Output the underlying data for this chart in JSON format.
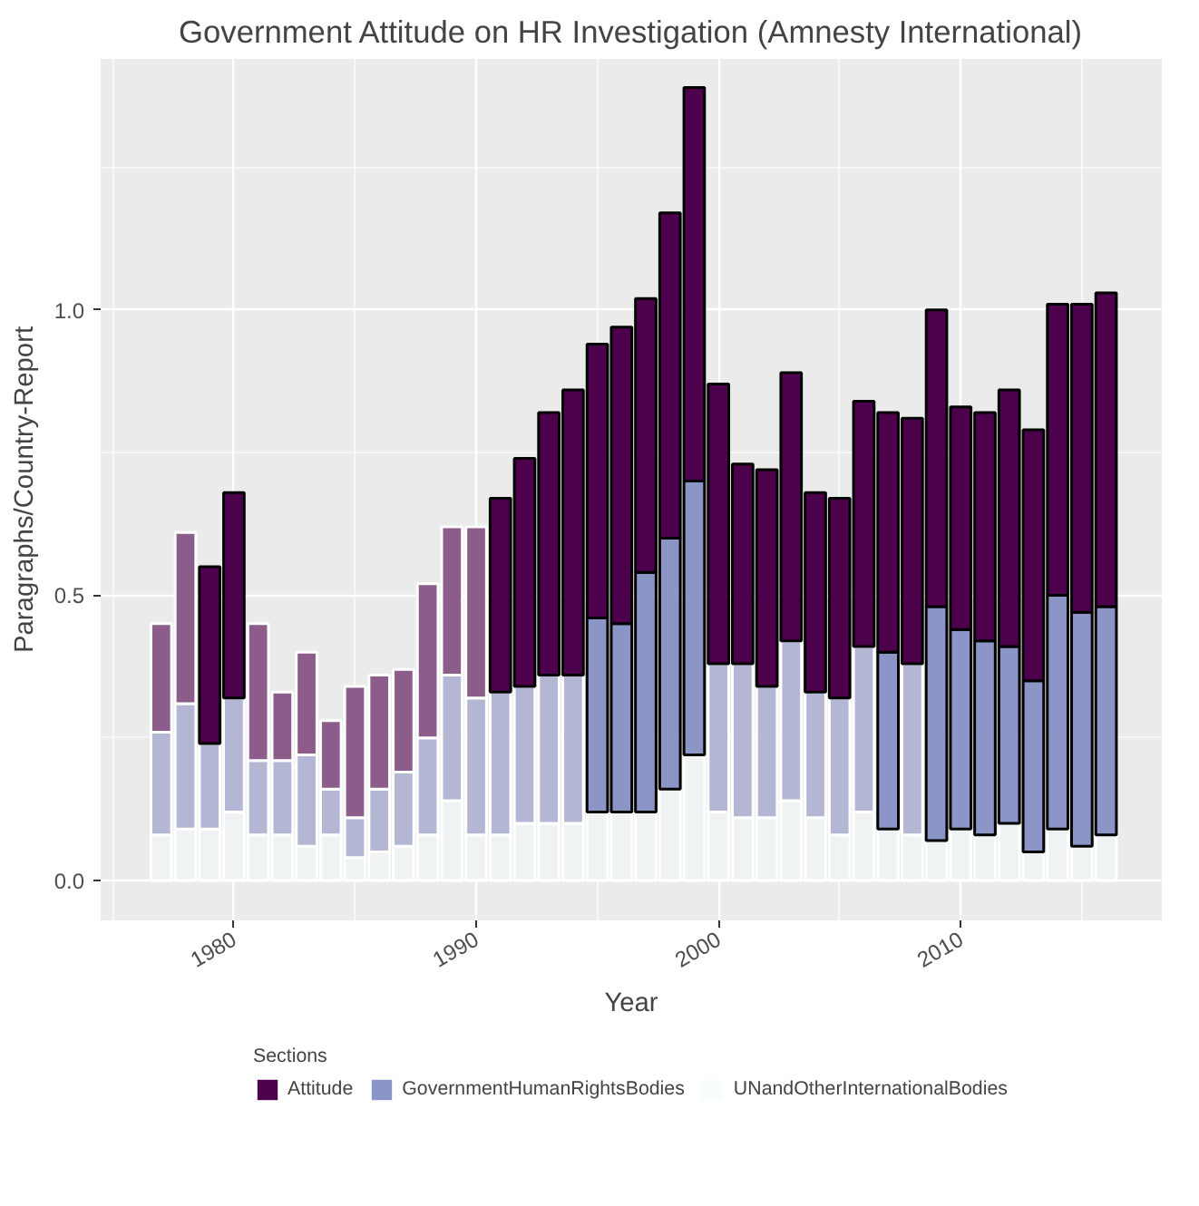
{
  "chart_data": {
    "type": "bar",
    "stacked": true,
    "title": "Government Attitude on HR Investigation (Amnesty International)",
    "xlabel": "Year",
    "ylabel": "Paragraphs/Country-Report",
    "legend_title": "Sections",
    "legend": "bottom",
    "grid": true,
    "x": [
      1977,
      1978,
      1979,
      1980,
      1981,
      1982,
      1983,
      1984,
      1985,
      1986,
      1987,
      1988,
      1989,
      1990,
      1991,
      1992,
      1993,
      1994,
      1995,
      1996,
      1997,
      1998,
      1999,
      2000,
      2001,
      2002,
      2003,
      2004,
      2005,
      2006,
      2007,
      2008,
      2009,
      2010,
      2011,
      2012,
      2013,
      2014,
      2015,
      2016
    ],
    "xlim": [
      1974.5,
      2018.3
    ],
    "xticks": [
      1980,
      1990,
      2000,
      2010
    ],
    "ylim": [
      -0.07,
      1.44
    ],
    "yticks": [
      {
        "value": 0,
        "label": "0.0"
      },
      {
        "value": 0.5,
        "label": "0.5"
      },
      {
        "value": 1,
        "label": "1.0"
      }
    ],
    "series": [
      {
        "name": "UNandOtherInternationalBodies",
        "color": "#f7fcfd",
        "colors": [
          "#eff3f3",
          "#eff3f3",
          "#eff3f3",
          "#eff3f3",
          "#eff3f3",
          "#eff3f3",
          "#eff3f3",
          "#eff3f3",
          "#eff3f3",
          "#eff3f3",
          "#eff3f3",
          "#eff3f3",
          "#eff3f3",
          "#eff3f3",
          "#eff3f3",
          "#eff3f3",
          "#eff3f3",
          "#eff3f3",
          "#eff3f3",
          "#eff3f3",
          "#eff3f3",
          "#eff3f3",
          "#eff3f3",
          "#eff3f3",
          "#eff3f3",
          "#eff3f3",
          "#eff3f3",
          "#eff3f3",
          "#eff3f3",
          "#eff3f3",
          "#eff3f3",
          "#eff3f3",
          "#eff3f3",
          "#eff3f3",
          "#eff3f3",
          "#eff3f3",
          "#eff3f3",
          "#eff3f3",
          "#eff3f3",
          "#eff3f3"
        ],
        "values": [
          0.08,
          0.09,
          0.09,
          0.12,
          0.08,
          0.08,
          0.06,
          0.08,
          0.04,
          0.05,
          0.06,
          0.08,
          0.14,
          0.08,
          0.08,
          0.1,
          0.1,
          0.1,
          0.12,
          0.12,
          0.12,
          0.16,
          0.22,
          0.12,
          0.11,
          0.11,
          0.14,
          0.11,
          0.08,
          0.12,
          0.09,
          0.08,
          0.07,
          0.09,
          0.08,
          0.1,
          0.05,
          0.09,
          0.06,
          0.08
        ]
      },
      {
        "name": "GovernmentHumanRightsBodies",
        "color": "#8c96c6",
        "colors": [
          "#b3b7d4",
          "#b3b7d4",
          "#b3b7d4",
          "#b3b7d4",
          "#b3b7d4",
          "#b3b7d4",
          "#b3b7d4",
          "#b3b7d4",
          "#b3b7d4",
          "#b3b7d4",
          "#b3b7d4",
          "#b3b7d4",
          "#b3b7d4",
          "#b3b7d4",
          "#b3b7d4",
          "#b3b7d4",
          "#b3b7d4",
          "#b3b7d4",
          "#8c96c6",
          "#8c96c6",
          "#8c96c6",
          "#8c96c6",
          "#8c96c6",
          "#b3b7d4",
          "#b3b7d4",
          "#b3b7d4",
          "#b3b7d4",
          "#b3b7d4",
          "#b3b7d4",
          "#b3b7d4",
          "#8c96c6",
          "#b3b7d4",
          "#8c96c6",
          "#8c96c6",
          "#8c96c6",
          "#8c96c6",
          "#8c96c6",
          "#8c96c6",
          "#8c96c6",
          "#8c96c6"
        ],
        "values": [
          0.18,
          0.22,
          0.15,
          0.2,
          0.13,
          0.13,
          0.16,
          0.08,
          0.07,
          0.11,
          0.13,
          0.17,
          0.22,
          0.24,
          0.25,
          0.24,
          0.26,
          0.26,
          0.34,
          0.33,
          0.42,
          0.44,
          0.48,
          0.26,
          0.27,
          0.23,
          0.28,
          0.22,
          0.24,
          0.29,
          0.31,
          0.3,
          0.41,
          0.35,
          0.34,
          0.31,
          0.3,
          0.41,
          0.41,
          0.4
        ]
      },
      {
        "name": "Attitude",
        "color": "#4d004b",
        "colors": [
          "#8c5c8a",
          "#8c5c8a",
          "#4d004b",
          "#4d004b",
          "#8c5c8a",
          "#8c5c8a",
          "#8c5c8a",
          "#8c5c8a",
          "#8c5c8a",
          "#8c5c8a",
          "#8c5c8a",
          "#8c5c8a",
          "#8c5c8a",
          "#8c5c8a",
          "#4d004b",
          "#4d004b",
          "#4d004b",
          "#4d004b",
          "#4d004b",
          "#4d004b",
          "#4d004b",
          "#4d004b",
          "#4d004b",
          "#4d004b",
          "#4d004b",
          "#4d004b",
          "#4d004b",
          "#4d004b",
          "#4d004b",
          "#4d004b",
          "#4d004b",
          "#4d004b",
          "#4d004b",
          "#4d004b",
          "#4d004b",
          "#4d004b",
          "#4d004b",
          "#4d004b",
          "#4d004b",
          "#4d004b"
        ],
        "values": [
          0.19,
          0.3,
          0.31,
          0.36,
          0.24,
          0.12,
          0.18,
          0.12,
          0.23,
          0.2,
          0.18,
          0.27,
          0.26,
          0.3,
          0.34,
          0.4,
          0.46,
          0.5,
          0.48,
          0.52,
          0.48,
          0.57,
          0.69,
          0.49,
          0.35,
          0.38,
          0.47,
          0.35,
          0.35,
          0.43,
          0.42,
          0.43,
          0.52,
          0.39,
          0.4,
          0.45,
          0.44,
          0.51,
          0.54,
          0.55
        ]
      }
    ]
  }
}
